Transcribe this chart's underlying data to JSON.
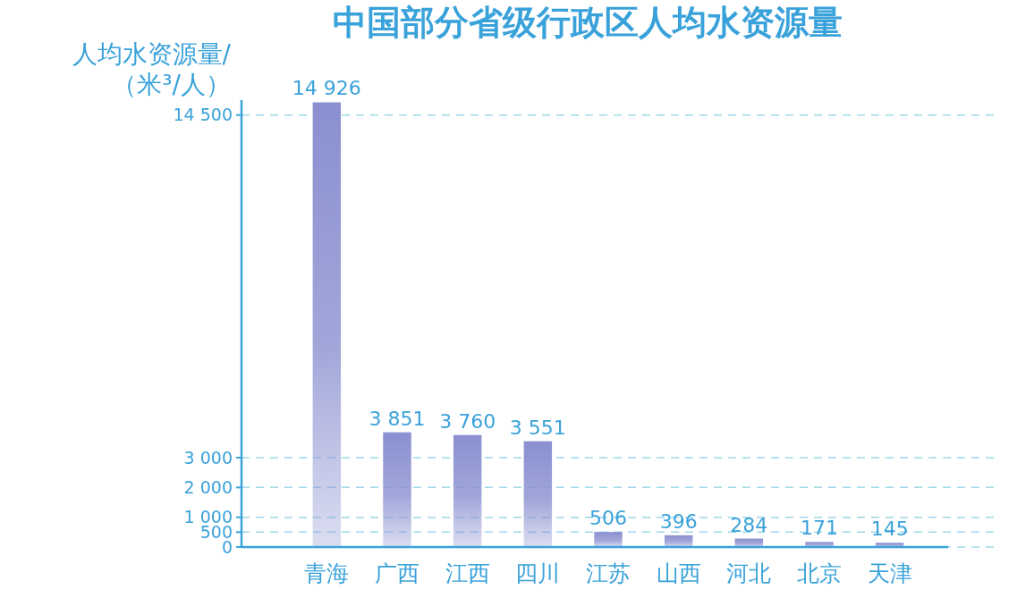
{
  "chart_data": {
    "type": "bar",
    "title": "中国部分省级行政区人均水资源量",
    "ylabel": "人均水资源量/（米³/人）",
    "categories": [
      "青海",
      "广西",
      "江西",
      "四川",
      "江苏",
      "山西",
      "河北",
      "北京",
      "天津"
    ],
    "values": [
      14926,
      3851,
      3760,
      3551,
      506,
      396,
      284,
      171,
      145
    ],
    "color": "#8a90d0",
    "ylim": [
      0,
      15000
    ],
    "yticks": [
      0,
      500,
      {
        "value": 1000,
        "label": "1 000"
      },
      {
        "value": 2000,
        "label": "2 000"
      },
      {
        "value": 3000,
        "label": "3 000"
      },
      {
        "value": 14500,
        "label": "14 500"
      }
    ],
    "value_labels": [
      "14 926",
      "3 851",
      "3 760",
      "3 551",
      "506",
      "396",
      "284",
      "171",
      "145"
    ],
    "grid": "y"
  }
}
